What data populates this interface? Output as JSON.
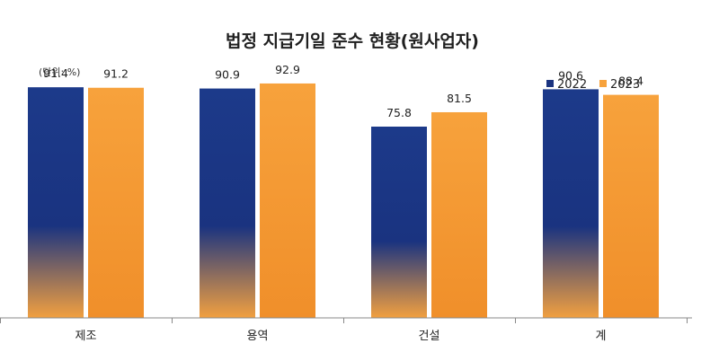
{
  "chart_data": {
    "type": "bar",
    "title": "법정 지급기일 준수 현황(원사업자)",
    "unit_label": "(단위: %)",
    "categories": [
      "제조",
      "용역",
      "건설",
      "계"
    ],
    "series": [
      {
        "name": "2022",
        "values": [
          91.4,
          90.9,
          75.8,
          90.6
        ],
        "color": "#1a3380"
      },
      {
        "name": "2023",
        "values": [
          91.2,
          92.9,
          81.5,
          88.4
        ],
        "color": "#f7a23c"
      }
    ],
    "ylim": [
      0,
      100
    ],
    "grid": false,
    "legend_position": "top-right"
  }
}
